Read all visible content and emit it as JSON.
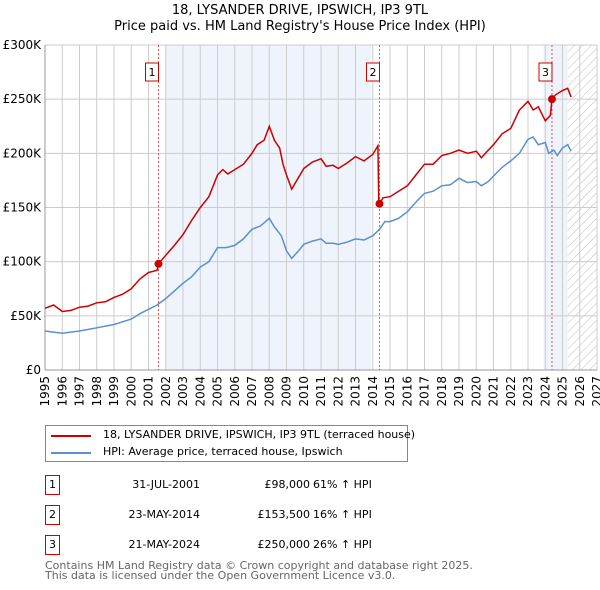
{
  "chart_data": {
    "type": "line",
    "title": "18, LYSANDER DRIVE, IPSWICH, IP3 9TL",
    "subtitle": "Price paid vs. HM Land Registry's House Price Index (HPI)",
    "xlim": [
      1995,
      2027
    ],
    "ylim": [
      0,
      300000
    ],
    "x_ticks": [
      "1995",
      "1996",
      "1997",
      "1998",
      "1999",
      "2000",
      "2001",
      "2002",
      "2003",
      "2004",
      "2005",
      "2006",
      "2007",
      "2008",
      "2009",
      "2010",
      "2011",
      "2012",
      "2013",
      "2014",
      "2015",
      "2016",
      "2017",
      "2018",
      "2019",
      "2020",
      "2021",
      "2022",
      "2023",
      "2024",
      "2025",
      "2026",
      "2027"
    ],
    "y_ticks": [
      {
        "v": 0,
        "label": "£0"
      },
      {
        "v": 50000,
        "label": "£50K"
      },
      {
        "v": 100000,
        "label": "£100K"
      },
      {
        "v": 150000,
        "label": "£150K"
      },
      {
        "v": 200000,
        "label": "£200K"
      },
      {
        "v": 250000,
        "label": "£250K"
      },
      {
        "v": 300000,
        "label": "£300K"
      }
    ],
    "grid": true,
    "shaded_periods": [
      [
        2002.0,
        2013.9
      ],
      [
        2023.9,
        2025.3
      ]
    ],
    "forecast_hatch_from": 2025.3,
    "series": [
      {
        "name": "18, LYSANDER DRIVE, IPSWICH, IP3 9TL (terraced house)",
        "color": "#cc0000",
        "x": [
          1995,
          1995.5,
          1996,
          1996.5,
          1997,
          1997.5,
          1998,
          1998.5,
          1999,
          1999.5,
          2000,
          2000.5,
          2001,
          2001.5,
          2001.58,
          2002,
          2002.5,
          2003,
          2003.5,
          2004,
          2004.5,
          2005,
          2005.3,
          2005.6,
          2006,
          2006.5,
          2007,
          2007.3,
          2007.7,
          2008,
          2008.3,
          2008.6,
          2008.8,
          2009,
          2009.3,
          2009.6,
          2010,
          2010.5,
          2011,
          2011.3,
          2011.7,
          2012,
          2012.5,
          2013,
          2013.5,
          2014,
          2014.3,
          2014.35,
          2014.39,
          2014.6,
          2015,
          2015.5,
          2016,
          2016.5,
          2017,
          2017.5,
          2018,
          2018.5,
          2019,
          2019.5,
          2020,
          2020.3,
          2020.7,
          2021,
          2021.5,
          2022,
          2022.5,
          2023,
          2023.3,
          2023.6,
          2024,
          2024.3,
          2024.39,
          2024.6,
          2025,
          2025.3,
          2025.5
        ],
        "values": [
          57000,
          60000,
          54000,
          55000,
          58000,
          59000,
          62000,
          63000,
          67000,
          70000,
          75000,
          84000,
          90000,
          92000,
          98000,
          106000,
          115000,
          125000,
          138000,
          150000,
          160000,
          180000,
          185000,
          181000,
          185000,
          190000,
          200000,
          208000,
          212000,
          225000,
          212000,
          205000,
          190000,
          180000,
          167000,
          175000,
          186000,
          192000,
          195000,
          188000,
          189000,
          186000,
          191000,
          197000,
          193000,
          199000,
          207000,
          155000,
          153500,
          159000,
          160000,
          165000,
          170000,
          180000,
          190000,
          190000,
          198000,
          200000,
          203000,
          200000,
          202000,
          196000,
          203000,
          208000,
          218000,
          223000,
          240000,
          248000,
          240000,
          243000,
          230000,
          235000,
          250000,
          254000,
          258000,
          260000,
          252000
        ]
      },
      {
        "name": "HPI: Average price, terraced house, Ipswich",
        "color": "#5b8fd0",
        "x": [
          1995,
          1996,
          1997,
          1998,
          1999,
          2000,
          2000.5,
          2001,
          2001.5,
          2002,
          2002.5,
          2003,
          2003.5,
          2004,
          2004.5,
          2005,
          2005.5,
          2006,
          2006.5,
          2007,
          2007.5,
          2008,
          2008.3,
          2008.7,
          2009,
          2009.3,
          2009.7,
          2010,
          2010.5,
          2011,
          2011.3,
          2011.7,
          2012,
          2012.5,
          2013,
          2013.5,
          2014,
          2014.4,
          2014.7,
          2015,
          2015.5,
          2016,
          2016.5,
          2017,
          2017.5,
          2018,
          2018.5,
          2019,
          2019.5,
          2020,
          2020.3,
          2020.7,
          2021,
          2021.5,
          2022,
          2022.5,
          2023,
          2023.3,
          2023.6,
          2024,
          2024.2,
          2024.5,
          2024.7,
          2025,
          2025.3,
          2025.5
        ],
        "values": [
          36000,
          34000,
          36000,
          39000,
          42000,
          47000,
          52000,
          56000,
          60000,
          66000,
          73000,
          80000,
          86000,
          95000,
          100000,
          113000,
          113000,
          115000,
          121000,
          130000,
          133000,
          140000,
          132000,
          124000,
          110000,
          103000,
          110000,
          116000,
          119000,
          121000,
          117000,
          117000,
          116000,
          118000,
          121000,
          120000,
          124000,
          130000,
          137000,
          137000,
          140000,
          146000,
          155000,
          163000,
          165000,
          170000,
          171000,
          177000,
          173000,
          174000,
          170000,
          174000,
          179000,
          187000,
          193000,
          200000,
          213000,
          215000,
          208000,
          210000,
          200000,
          203000,
          198000,
          205000,
          208000,
          202000
        ]
      }
    ],
    "sales": [
      {
        "num": "1",
        "x": 2001.58,
        "value": 98000,
        "date": "31-JUL-2001",
        "price": "£98,000",
        "hpi": "61% ↑ HPI"
      },
      {
        "num": "2",
        "x": 2014.39,
        "value": 153500,
        "date": "23-MAY-2014",
        "price": "£153,500",
        "hpi": "16% ↑ HPI"
      },
      {
        "num": "3",
        "x": 2024.39,
        "value": 250000,
        "date": "21-MAY-2024",
        "price": "£250,000",
        "hpi": "26% ↑ HPI"
      }
    ]
  },
  "legend": {
    "property": "18, LYSANDER DRIVE, IPSWICH, IP3 9TL (terraced house)",
    "hpi": "HPI: Average price, terraced house, Ipswich"
  },
  "footer": {
    "line1": "Contains HM Land Registry data © Crown copyright and database right 2025.",
    "line2": "This data is licensed under the Open Government Licence v3.0."
  }
}
